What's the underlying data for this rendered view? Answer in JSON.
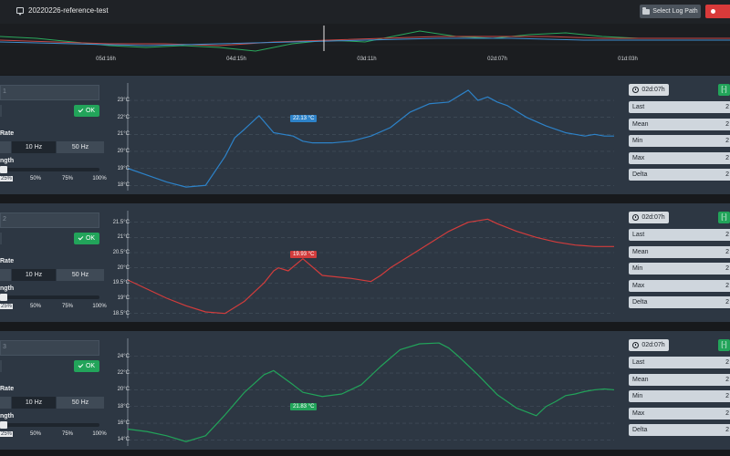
{
  "header": {
    "title": "20220226-reference-test",
    "select_log_label": "Select Log Path"
  },
  "overview": {
    "ticks": [
      "05d:16h",
      "04d:15h",
      "03d:11h",
      "02d:07h",
      "01d:03h"
    ]
  },
  "common": {
    "ok_label": "OK",
    "rate_label": "Rate",
    "length_label": "ngth",
    "rates": [
      "",
      "10 Hz",
      "50 Hz"
    ],
    "pcts": [
      "25%",
      "50%",
      "75%",
      "100%"
    ],
    "time_label": "02d:07h",
    "expand_label": "[-]",
    "stat_labels": [
      "Last",
      "Mean",
      "Min",
      "Max",
      "Delta"
    ],
    "stat_value": "2"
  },
  "colors": {
    "panel1": "#2d82c8",
    "panel2": "#d23c3c",
    "panel3": "#22a35a",
    "ok_green": "#22a45a",
    "danger": "#d93a3a"
  },
  "panels": [
    {
      "id_fragment": "1",
      "cursor_value": "22.13 °C",
      "yticks": [
        "23°C",
        "22°C",
        "21°C",
        "20°C",
        "19°C",
        "18°C"
      ],
      "ylim": [
        17.8,
        23.7
      ]
    },
    {
      "id_fragment": "2",
      "cursor_value": "19.93 °C",
      "yticks": [
        "21.5°C",
        "21°C",
        "20.5°C",
        "20°C",
        "19.5°C",
        "19°C",
        "18.5°C"
      ],
      "ylim": [
        18.4,
        21.7
      ]
    },
    {
      "id_fragment": "3",
      "cursor_value": "21.83 °C",
      "yticks": [
        "24°C",
        "22°C",
        "20°C",
        "18°C",
        "16°C",
        "14°C"
      ],
      "ylim": [
        13.5,
        25.5
      ]
    }
  ],
  "chart_data": [
    {
      "type": "line",
      "ylim": [
        17.8,
        23.7
      ],
      "x": [
        0,
        4,
        8,
        12,
        16,
        20,
        22,
        24,
        27,
        30,
        34,
        36,
        38,
        42,
        46,
        50,
        54,
        58,
        62,
        66,
        70,
        72,
        74,
        76,
        78,
        82,
        86,
        90,
        92,
        94,
        96,
        98,
        100
      ],
      "y": [
        19.0,
        18.6,
        18.2,
        17.9,
        18.0,
        19.7,
        20.8,
        21.3,
        22.1,
        21.1,
        20.9,
        20.6,
        20.5,
        20.5,
        20.6,
        20.9,
        21.4,
        22.3,
        22.8,
        22.9,
        23.6,
        23.0,
        23.2,
        22.9,
        22.7,
        22.0,
        21.5,
        21.1,
        21.0,
        20.9,
        21.0,
        20.9,
        20.9
      ]
    },
    {
      "type": "line",
      "ylim": [
        18.4,
        21.7
      ],
      "x": [
        0,
        4,
        8,
        12,
        16,
        20,
        24,
        28,
        30,
        31,
        33,
        36,
        40,
        46,
        50,
        52,
        54,
        58,
        62,
        66,
        70,
        74,
        76,
        80,
        84,
        88,
        92,
        96,
        100
      ],
      "y": [
        19.6,
        19.3,
        19.0,
        18.75,
        18.55,
        18.5,
        18.9,
        19.5,
        19.9,
        20.0,
        19.9,
        20.3,
        19.75,
        19.65,
        19.55,
        19.75,
        20.0,
        20.4,
        20.8,
        21.2,
        21.5,
        21.6,
        21.45,
        21.2,
        21.0,
        20.85,
        20.75,
        20.7,
        20.7
      ]
    },
    {
      "type": "line",
      "ylim": [
        13.5,
        25.5
      ],
      "x": [
        0,
        4,
        8,
        12,
        16,
        20,
        24,
        28,
        30,
        34,
        36,
        40,
        44,
        48,
        52,
        56,
        60,
        64,
        66,
        68,
        72,
        76,
        80,
        84,
        86,
        88,
        90,
        92,
        94,
        96,
        98,
        100
      ],
      "y": [
        15.3,
        15.0,
        14.5,
        13.8,
        14.5,
        17.0,
        19.7,
        21.8,
        22.3,
        20.6,
        19.7,
        19.2,
        19.5,
        20.6,
        22.8,
        24.8,
        25.5,
        25.6,
        25.0,
        24.0,
        21.8,
        19.4,
        17.8,
        16.9,
        18.0,
        18.6,
        19.3,
        19.5,
        19.8,
        20.0,
        20.1,
        20.0
      ]
    }
  ]
}
